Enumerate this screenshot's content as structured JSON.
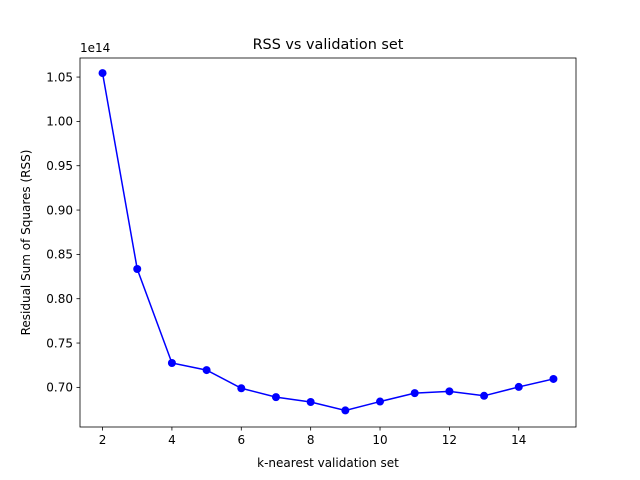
{
  "chart_data": {
    "type": "line",
    "title": "RSS vs validation set",
    "xlabel": "k-nearest validation set",
    "ylabel": "Residual Sum of Squares (RSS)",
    "y_offset_label": "1e14",
    "xlim": [
      1.35,
      15.65
    ],
    "ylim": [
      0.6553,
      1.0715
    ],
    "x_ticks": [
      2,
      4,
      6,
      8,
      10,
      12,
      14
    ],
    "x_tick_labels": [
      "2",
      "4",
      "6",
      "8",
      "10",
      "12",
      "14"
    ],
    "y_ticks": [
      0.7,
      0.75,
      0.8,
      0.85,
      0.9,
      0.95,
      1.0,
      1.05
    ],
    "y_tick_labels": [
      "0.70",
      "0.75",
      "0.80",
      "0.85",
      "0.90",
      "0.95",
      "1.00",
      "1.05"
    ],
    "grid": false,
    "line_color": "#0000ff",
    "series": [
      {
        "x": [
          2,
          3,
          4,
          5,
          6,
          7,
          8,
          9,
          10,
          11,
          12,
          13,
          14,
          15
        ],
        "values": [
          1.0545,
          0.8335,
          0.7275,
          0.7195,
          0.699,
          0.689,
          0.6835,
          0.674,
          0.684,
          0.6935,
          0.6955,
          0.6905,
          0.7005,
          0.7095
        ]
      }
    ]
  }
}
